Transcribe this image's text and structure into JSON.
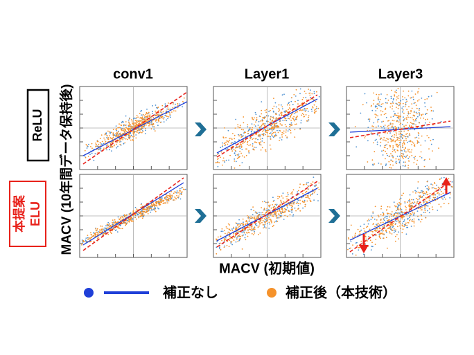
{
  "columns": [
    "conv1",
    "Layer1",
    "Layer3"
  ],
  "rows": [
    [
      "ReLU"
    ],
    [
      "本提案",
      "ELU"
    ]
  ],
  "y_axis_label": "MACV (10年間データ保持後)",
  "x_axis_label": "MACV (初期値)",
  "legend": [
    "補正なし",
    "補正後（本技術）"
  ]
}
